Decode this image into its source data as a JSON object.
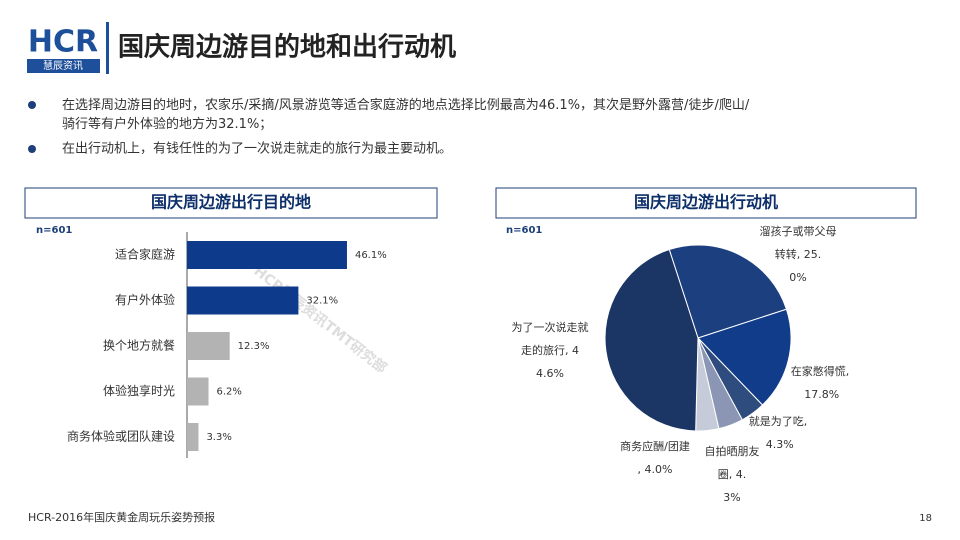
{
  "header": {
    "logo": "HCR",
    "logo_sub": "慧辰资讯",
    "title": "国庆周边游目的地和出行动机"
  },
  "bullets": [
    "在选择周边游目的地时，农家乐/采摘/风景游览等适合家庭游的地点选择比例最高为46.1%，其次是野外露营/徒步/爬山/骑行等有户外体验的地方为32.1%；",
    "在出行动机上，有钱任性的为了一次说走就走的旅行为最主要动机。"
  ],
  "chart_data": [
    {
      "type": "hbar",
      "title": "国庆周边游出行目的地",
      "note": "n=601",
      "categories": [
        "适合家庭游",
        "有户外体验",
        "换个地方就餐",
        "体验独享时光",
        "商务体验或团队建设"
      ],
      "values": [
        46.1,
        32.1,
        12.3,
        6.2,
        3.3
      ],
      "value_labels": [
        "46.1%",
        "32.1%",
        "12.3%",
        "6.2%",
        "3.3%"
      ],
      "colors": [
        "#0d3a8a",
        "#0d3a8a",
        "#b3b3b3",
        "#b3b3b3",
        "#b3b3b3"
      ]
    },
    {
      "type": "pie",
      "title": "国庆周边游出行动机",
      "note": "n=601",
      "values": [
        25.0,
        17.8,
        4.3,
        4.3,
        4.0,
        44.6
      ],
      "value_labels": [
        "溜孩子或带父母转转, 25.0%",
        "在家憋得慌, 17.8%",
        "就是为了吃, 4.3%",
        "自拍晒朋友圈, 4.3%",
        "商务应酬/团建, 4.0%",
        "为了一次说走就走的旅行, 44.6%"
      ],
      "colors": [
        "#1c3f80",
        "#103c8a",
        "#2f4c7e",
        "#8a96b4",
        "#c5cbd8",
        "#1b3564"
      ]
    }
  ],
  "watermark": "HCR慧辰资讯TMT研究部",
  "footer": "HCR-2016年国庆黄金周玩乐姿势预报",
  "page_number": "18"
}
